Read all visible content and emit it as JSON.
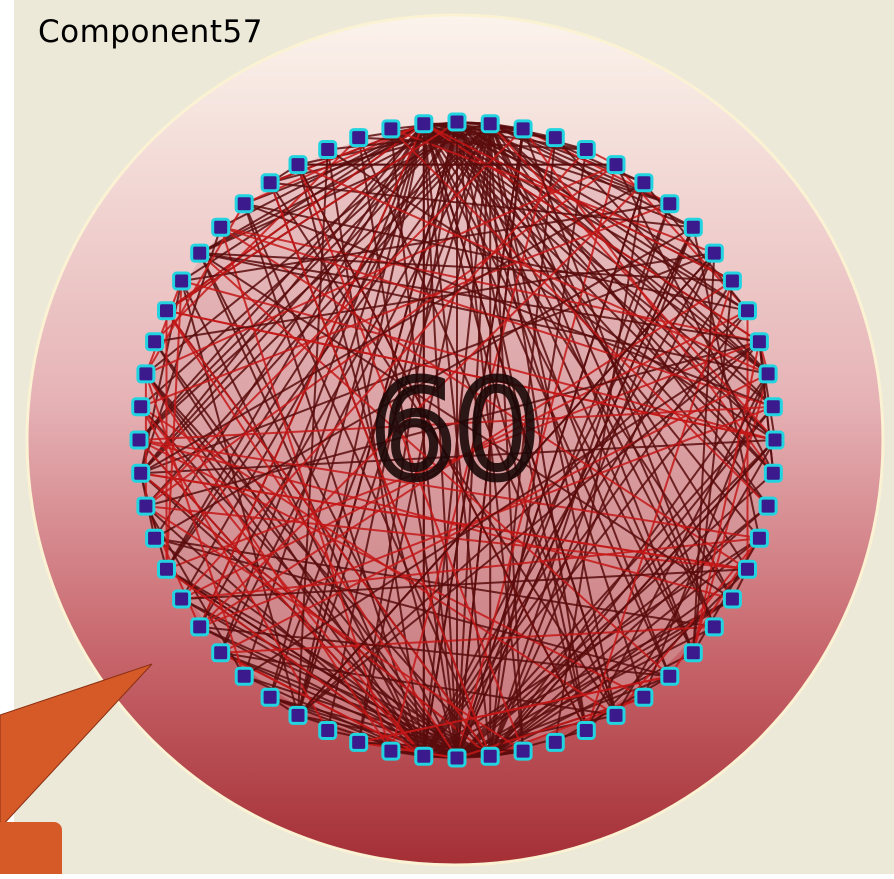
{
  "title": "Component57",
  "center_label": "60",
  "colors": {
    "background": "#ece9d8",
    "halo_top": "#fbf4ec",
    "halo_bottom": "#a42f35",
    "node_fill": "#3a1a8c",
    "node_outline": "#22d4e0",
    "edge_dark": "#5a0c0c",
    "edge_red": "#c41818",
    "callout": "#d65a28"
  },
  "node_count": 60,
  "icons": [
    "callout-pointer"
  ]
}
